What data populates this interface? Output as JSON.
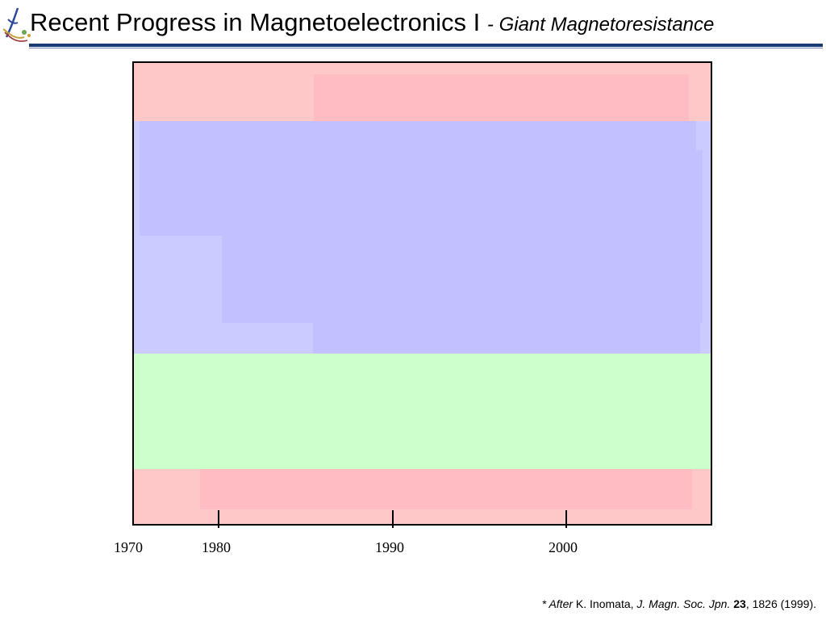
{
  "slide": {
    "title": "Recent Progress in Magnetoelectronics I",
    "subtitle": "- Giant Magnetoresistance",
    "logo_icon": "university-logo-icon",
    "rule_color": "#1a3a73"
  },
  "timeline": {
    "tick_labels": [
      "1970",
      "1980",
      "1990",
      "2000"
    ],
    "colors": {
      "pink": "#ffc8c8",
      "pink_dark": "#ffbcc2",
      "blue": "#c2c0ff",
      "blue_light": "#cccbff",
      "green": "#ccffcc"
    }
  },
  "citation": {
    "prefix": "* After",
    "author": " K. Inomata, ",
    "journal": "J. Magn. Soc. Jpn.",
    "volume": "23",
    "rest": ", 1826 (1999)."
  }
}
